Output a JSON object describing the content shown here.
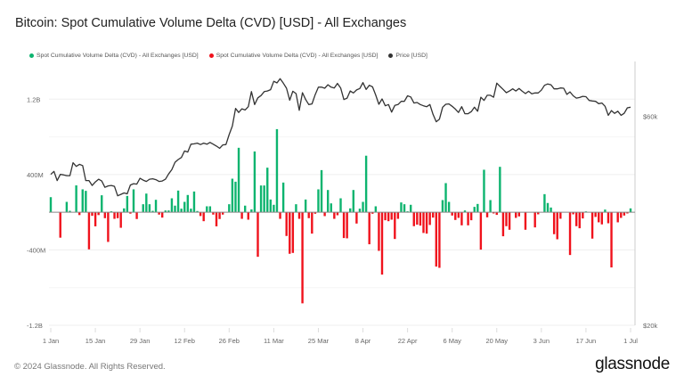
{
  "title": "Bitcoin: Spot Cumulative Volume Delta (CVD) [USD] - All Exchanges",
  "footer": {
    "copyright": "© 2024 Glassnode. All Rights Reserved.",
    "logo": "glassnode"
  },
  "chart_data": {
    "type": "bar",
    "title": "Bitcoin: Spot Cumulative Volume Delta (CVD) [USD] - All Exchanges",
    "legend_placement": "top-left",
    "grid": true,
    "legend": [
      {
        "name": "Spot Cumulative Volume Delta (CVD) - All Exchanges [USD]",
        "color": "#0db46f"
      },
      {
        "name": "Spot Cumulative Volume Delta (CVD) - All Exchanges [USD]",
        "color": "#f0121c"
      },
      {
        "name": "Price [USD]",
        "color": "#333333"
      }
    ],
    "x_start": "2024-01-01",
    "x_end": "2024-07-01",
    "x_interval": "daily",
    "x_tick_labels": [
      "1 Jan",
      "15 Jan",
      "29 Jan",
      "12 Feb",
      "26 Feb",
      "11 Mar",
      "25 Mar",
      "8 Apr",
      "22 Apr",
      "6 May",
      "20 May",
      "3 Jun",
      "17 Jun",
      "1 Jul"
    ],
    "left_axis": {
      "tick_labels": [
        "1.2B",
        "400M",
        "-400M",
        "-1.2B"
      ],
      "ticks_usd_millions": [
        1200,
        400,
        -400,
        -1200
      ],
      "ylim_usd_millions": [
        -1200,
        1600
      ],
      "scale": "linear"
    },
    "right_axis": {
      "tick_labels": [
        "$60k",
        "$20k"
      ],
      "ticks_usd": [
        60000,
        20000
      ],
      "ylim_usd": [
        20000,
        80000
      ],
      "scale": "log"
    },
    "cvd_series": {
      "positive_color": "#0db46f",
      "negative_color": "#f0121c",
      "values_usd_millions": [
        160,
        0,
        0,
        -270,
        0,
        110,
        15,
        0,
        285,
        -30,
        243,
        227,
        -394,
        -38,
        -150,
        -30,
        180,
        -63,
        -315,
        10,
        -70,
        -63,
        -165,
        41,
        173,
        -15,
        243,
        -72,
        0,
        85,
        198,
        85,
        15,
        132,
        -25,
        -57,
        19,
        19,
        148,
        70,
        230,
        38,
        110,
        183,
        38,
        220,
        13,
        -40,
        -95,
        63,
        63,
        -25,
        -150,
        -72,
        -25,
        0,
        85,
        356,
        324,
        684,
        -70,
        70,
        -79,
        30,
        645,
        -473,
        284,
        284,
        473,
        135,
        79,
        882,
        -70,
        315,
        -252,
        -441,
        -432,
        85,
        -70,
        -967,
        135,
        -63,
        -227,
        -16,
        243,
        447,
        -41,
        236,
        94,
        -70,
        -32,
        148,
        -274,
        -277,
        41,
        236,
        -120,
        38,
        110,
        600,
        -340,
        -16,
        63,
        -410,
        -662,
        -85,
        -95,
        -79,
        -284,
        -70,
        104,
        85,
        10,
        79,
        -148,
        -132,
        -142,
        -220,
        -227,
        -135,
        -57,
        -577,
        -590,
        129,
        309,
        110,
        -35,
        -82,
        -60,
        -139,
        19,
        -139,
        -85,
        57,
        88,
        -397,
        451,
        -54,
        129,
        -13,
        -28,
        482,
        -255,
        -148,
        -186,
        0,
        -60,
        -44,
        0,
        -186,
        0,
        0,
        -161,
        -22,
        0,
        192,
        98,
        50,
        -233,
        -287,
        -69,
        0,
        0,
        -454,
        -22,
        -148,
        -170,
        -66,
        9,
        0,
        -280,
        -50,
        -107,
        -129,
        28,
        -117,
        -586,
        0,
        -107,
        -60,
        -35,
        -13,
        41
      ]
    },
    "price_series": {
      "name": "Price [USD]",
      "color": "#333333",
      "values_usd_thousands": [
        44.2,
        44.9,
        42.8,
        44.2,
        44.1,
        43.9,
        43.9,
        47.0,
        46.1,
        46.6,
        46.3,
        42.8,
        42.8,
        41.7,
        42.5,
        43.1,
        42.7,
        41.3,
        41.6,
        41.7,
        41.5,
        39.5,
        39.8,
        40.1,
        39.9,
        41.8,
        42.1,
        42.0,
        43.3,
        42.9,
        42.6,
        43.1,
        43.2,
        43.0,
        42.6,
        42.7,
        43.1,
        44.3,
        45.3,
        47.1,
        47.8,
        48.3,
        50.0,
        49.7,
        51.8,
        51.9,
        52.1,
        51.7,
        52.1,
        51.8,
        52.3,
        51.8,
        51.3,
        50.7,
        51.6,
        51.7,
        54.5,
        57.0,
        62.5,
        61.2,
        62.4,
        62.0,
        63.1,
        68.3,
        63.8,
        66.1,
        66.9,
        68.3,
        68.5,
        69.0,
        72.1,
        71.5,
        73.1,
        71.4,
        69.5,
        65.3,
        68.4,
        67.6,
        61.9,
        67.9,
        65.5,
        63.8,
        64.0,
        67.2,
        69.9,
        69.9,
        69.5,
        70.8,
        69.9,
        69.6,
        71.3,
        69.6,
        65.5,
        66.0,
        68.5,
        67.8,
        68.9,
        69.4,
        71.6,
        69.1,
        70.6,
        70.0,
        67.1,
        63.9,
        65.7,
        63.4,
        63.8,
        61.3,
        63.5,
        63.8,
        64.9,
        64.9,
        66.8,
        66.4,
        64.3,
        64.5,
        63.8,
        63.4,
        63.1,
        63.8,
        60.6,
        58.3,
        59.1,
        62.9,
        63.9,
        64.0,
        63.2,
        62.3,
        61.2,
        63.1,
        60.8,
        60.8,
        61.5,
        62.9,
        61.6,
        66.3,
        65.2,
        67.0,
        67.0,
        66.3,
        71.4,
        70.2,
        69.1,
        67.9,
        68.5,
        69.3,
        68.5,
        69.4,
        68.4,
        67.6,
        68.4,
        67.5,
        67.8,
        67.8,
        68.8,
        70.6,
        71.1,
        70.8,
        69.3,
        69.3,
        69.6,
        69.5,
        67.3,
        68.2,
        66.8,
        66.0,
        66.2,
        66.6,
        66.5,
        65.2,
        65.0,
        64.9,
        64.1,
        64.3,
        63.2,
        60.3,
        61.8,
        60.9,
        61.6,
        60.3,
        60.9,
        62.7,
        62.9
      ]
    }
  }
}
